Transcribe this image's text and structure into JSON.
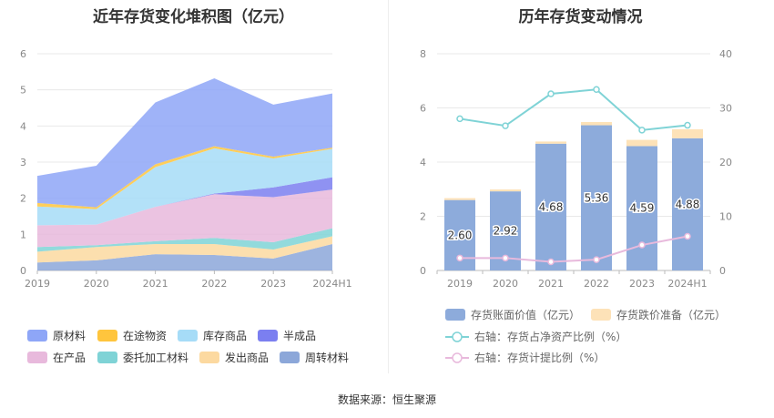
{
  "left_chart": {
    "title": "近年存货变化堆积图（亿元）",
    "legend": [
      {
        "name": "原材料",
        "color": "#8ea6f7"
      },
      {
        "name": "在途物资",
        "color": "#ffc53d"
      },
      {
        "name": "库存商品",
        "color": "#a6dcf7"
      },
      {
        "name": "半成品",
        "color": "#7b7ff0"
      },
      {
        "name": "在产品",
        "color": "#e8b9dc"
      },
      {
        "name": "委托加工材料",
        "color": "#7fd3d6"
      },
      {
        "name": "发出商品",
        "color": "#fcd9a0"
      },
      {
        "name": "周转材料",
        "color": "#8ca7d9"
      }
    ]
  },
  "right_chart": {
    "title": "历年存货变动情况",
    "legend": [
      {
        "name": "存货账面价值（亿元）",
        "color": "#8dabdb"
      },
      {
        "name": "存货跌价准备（亿元）",
        "color": "#fde2b8"
      },
      {
        "name": "右轴：存货占净资产比例（%）",
        "color": "#7fd3d6"
      },
      {
        "name": "右轴：存货计提比例（%）",
        "color": "#e8b9dc"
      }
    ]
  },
  "chart_data": [
    {
      "type": "area",
      "stacked": true,
      "title": "近年存货变化堆积图（亿元）",
      "x": [
        "2019",
        "2020",
        "2021",
        "2022",
        "2023",
        "2024H1"
      ],
      "ylim": [
        0,
        6
      ],
      "yticks": [
        0,
        1,
        2,
        3,
        4,
        5,
        6
      ],
      "series": [
        {
          "name": "周转材料",
          "color": "#8ca7d9",
          "values": [
            0.22,
            0.28,
            0.45,
            0.43,
            0.33,
            0.73
          ]
        },
        {
          "name": "发出商品",
          "color": "#fcd9a0",
          "values": [
            0.3,
            0.37,
            0.28,
            0.3,
            0.25,
            0.22
          ]
        },
        {
          "name": "委托加工材料",
          "color": "#7fd3d6",
          "values": [
            0.13,
            0.05,
            0.08,
            0.17,
            0.2,
            0.22
          ]
        },
        {
          "name": "在产品",
          "color": "#e8b9dc",
          "values": [
            0.6,
            0.57,
            0.95,
            1.21,
            1.25,
            1.07
          ]
        },
        {
          "name": "半成品",
          "color": "#7b7ff0",
          "values": [
            0.0,
            0.0,
            0.0,
            0.02,
            0.27,
            0.34
          ]
        },
        {
          "name": "库存商品",
          "color": "#a6dcf7",
          "values": [
            0.52,
            0.43,
            1.1,
            1.25,
            0.8,
            0.79
          ]
        },
        {
          "name": "在途物资",
          "color": "#ffc53d",
          "values": [
            0.1,
            0.05,
            0.08,
            0.06,
            0.05,
            0.03
          ]
        },
        {
          "name": "原材料",
          "color": "#8ea6f7",
          "values": [
            0.75,
            1.15,
            1.71,
            1.88,
            1.44,
            1.5
          ]
        }
      ]
    },
    {
      "type": "bar",
      "stacked": true,
      "title": "历年存货变动情况",
      "categories": [
        "2019",
        "2020",
        "2021",
        "2022",
        "2023",
        "2024H1"
      ],
      "ylim": [
        0,
        8
      ],
      "yticks": [
        0,
        2,
        4,
        6,
        8
      ],
      "y2lim": [
        0,
        40
      ],
      "y2ticks": [
        0,
        10,
        20,
        30,
        40
      ],
      "series": [
        {
          "name": "存货账面价值（亿元）",
          "type": "bar",
          "color": "#8dabdb",
          "values": [
            2.6,
            2.92,
            4.68,
            5.36,
            4.59,
            4.88
          ],
          "labels": [
            "2.60",
            "2.92",
            "4.68",
            "5.36",
            "4.59",
            "4.88"
          ]
        },
        {
          "name": "存货跌价准备（亿元）",
          "type": "bar",
          "color": "#fde2b8",
          "values": [
            0.07,
            0.07,
            0.08,
            0.12,
            0.23,
            0.33
          ]
        },
        {
          "name": "右轴：存货占净资产比例（%）",
          "type": "line",
          "axis": "right",
          "color": "#7fd3d6",
          "values": [
            28.0,
            26.7,
            32.6,
            33.4,
            25.9,
            26.8
          ]
        },
        {
          "name": "右轴：存货计提比例（%）",
          "type": "line",
          "axis": "right",
          "color": "#e8b9dc",
          "values": [
            2.3,
            2.3,
            1.6,
            2.0,
            4.7,
            6.3
          ]
        }
      ]
    }
  ],
  "footer": "数据来源：恒生聚源"
}
